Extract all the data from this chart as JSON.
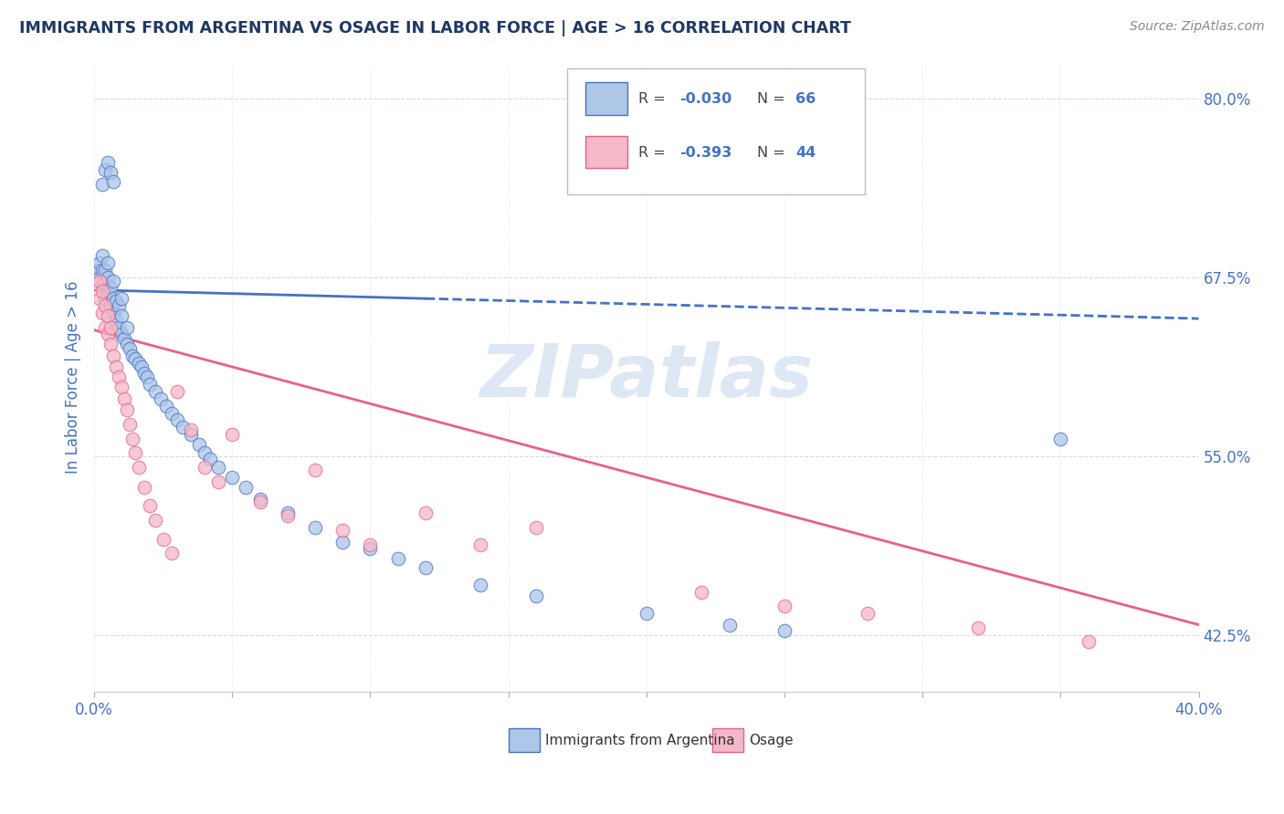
{
  "title": "IMMIGRANTS FROM ARGENTINA VS OSAGE IN LABOR FORCE | AGE > 16 CORRELATION CHART",
  "source_text": "Source: ZipAtlas.com",
  "ylabel": "In Labor Force | Age > 16",
  "xlim": [
    0.0,
    0.4
  ],
  "ylim": [
    0.385,
    0.825
  ],
  "xtick_positions": [
    0.0,
    0.05,
    0.1,
    0.15,
    0.2,
    0.25,
    0.3,
    0.35,
    0.4
  ],
  "ytick_positions": [
    0.425,
    0.55,
    0.675,
    0.8
  ],
  "ytick_labels": [
    "42.5%",
    "55.0%",
    "67.5%",
    "80.0%"
  ],
  "legend_r1": "-0.030",
  "legend_n1": "66",
  "legend_r2": "-0.393",
  "legend_n2": "44",
  "color_argentina": "#aec6e8",
  "color_osage": "#f4b8c8",
  "color_argentina_line": "#4472c4",
  "color_osage_line": "#e8608a",
  "color_title": "#1f3864",
  "color_axis_labels": "#4472c4",
  "color_source": "#888888",
  "watermark_color": "#dde8f4",
  "trend_arg_x0": 0.0,
  "trend_arg_y0": 0.666,
  "trend_arg_x1": 0.12,
  "trend_arg_y1": 0.66,
  "trend_arg_dash_x0": 0.12,
  "trend_arg_dash_y0": 0.66,
  "trend_arg_dash_x1": 0.4,
  "trend_arg_dash_y1": 0.646,
  "trend_osage_x0": 0.0,
  "trend_osage_y0": 0.638,
  "trend_osage_x1": 0.4,
  "trend_osage_y1": 0.432,
  "argentina_x": [
    0.001,
    0.002,
    0.002,
    0.003,
    0.003,
    0.003,
    0.004,
    0.004,
    0.004,
    0.005,
    0.005,
    0.005,
    0.006,
    0.006,
    0.007,
    0.007,
    0.007,
    0.008,
    0.008,
    0.009,
    0.009,
    0.01,
    0.01,
    0.01,
    0.011,
    0.012,
    0.012,
    0.013,
    0.014,
    0.015,
    0.016,
    0.017,
    0.018,
    0.019,
    0.02,
    0.022,
    0.024,
    0.026,
    0.028,
    0.03,
    0.032,
    0.035,
    0.038,
    0.04,
    0.042,
    0.045,
    0.05,
    0.055,
    0.06,
    0.07,
    0.08,
    0.09,
    0.1,
    0.11,
    0.12,
    0.14,
    0.16,
    0.2,
    0.23,
    0.25,
    0.003,
    0.004,
    0.005,
    0.006,
    0.007,
    0.35
  ],
  "argentina_y": [
    0.68,
    0.675,
    0.685,
    0.67,
    0.68,
    0.69,
    0.66,
    0.67,
    0.68,
    0.665,
    0.675,
    0.685,
    0.655,
    0.668,
    0.65,
    0.66,
    0.672,
    0.645,
    0.658,
    0.64,
    0.655,
    0.635,
    0.648,
    0.66,
    0.632,
    0.628,
    0.64,
    0.625,
    0.62,
    0.618,
    0.615,
    0.612,
    0.608,
    0.605,
    0.6,
    0.595,
    0.59,
    0.585,
    0.58,
    0.575,
    0.57,
    0.565,
    0.558,
    0.552,
    0.548,
    0.542,
    0.535,
    0.528,
    0.52,
    0.51,
    0.5,
    0.49,
    0.485,
    0.478,
    0.472,
    0.46,
    0.452,
    0.44,
    0.432,
    0.428,
    0.74,
    0.75,
    0.755,
    0.748,
    0.742,
    0.562
  ],
  "osage_x": [
    0.001,
    0.002,
    0.002,
    0.003,
    0.003,
    0.004,
    0.004,
    0.005,
    0.005,
    0.006,
    0.006,
    0.007,
    0.008,
    0.009,
    0.01,
    0.011,
    0.012,
    0.013,
    0.014,
    0.015,
    0.016,
    0.018,
    0.02,
    0.022,
    0.025,
    0.028,
    0.03,
    0.035,
    0.04,
    0.045,
    0.05,
    0.06,
    0.07,
    0.08,
    0.09,
    0.1,
    0.12,
    0.14,
    0.16,
    0.22,
    0.25,
    0.28,
    0.32,
    0.36
  ],
  "osage_y": [
    0.67,
    0.66,
    0.672,
    0.65,
    0.665,
    0.64,
    0.655,
    0.635,
    0.648,
    0.628,
    0.64,
    0.62,
    0.612,
    0.605,
    0.598,
    0.59,
    0.582,
    0.572,
    0.562,
    0.552,
    0.542,
    0.528,
    0.515,
    0.505,
    0.492,
    0.482,
    0.595,
    0.568,
    0.542,
    0.532,
    0.565,
    0.518,
    0.508,
    0.54,
    0.498,
    0.488,
    0.51,
    0.488,
    0.5,
    0.455,
    0.445,
    0.44,
    0.43,
    0.42
  ]
}
